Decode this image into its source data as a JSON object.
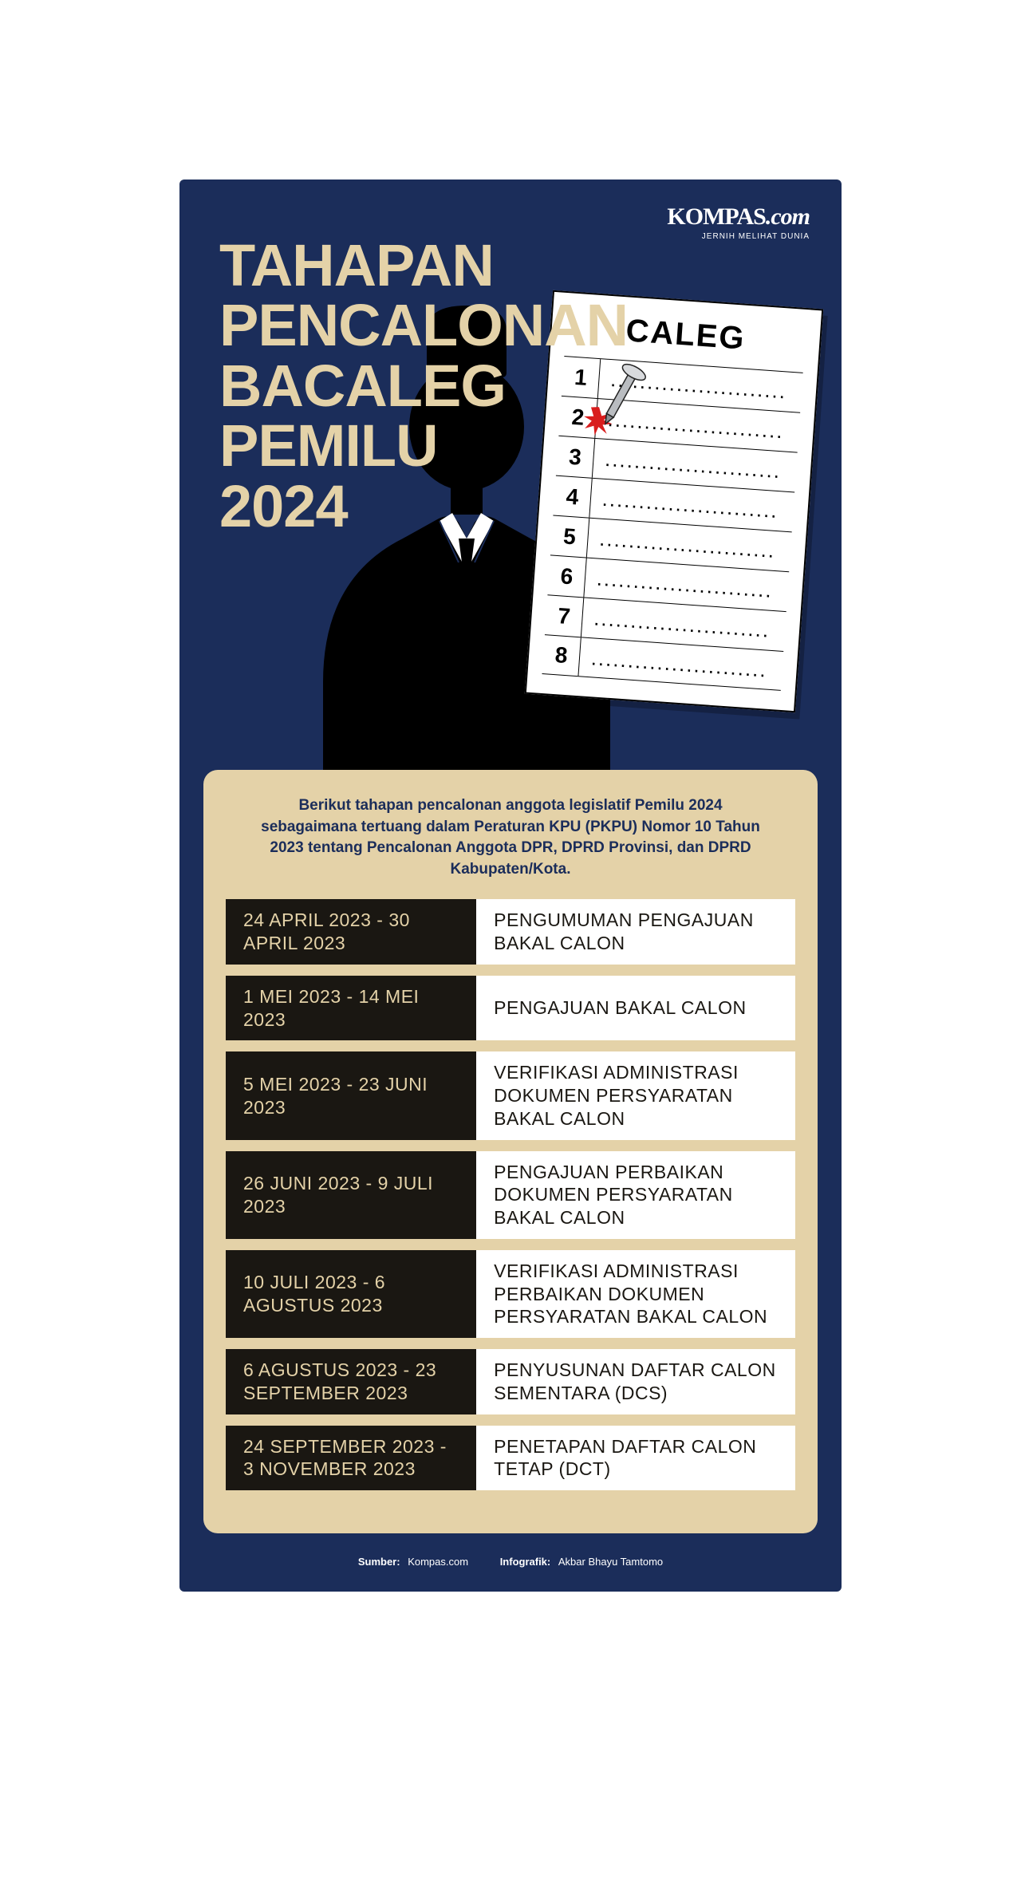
{
  "colors": {
    "poster_bg": "#1b2d5a",
    "accent_cream": "#e4d2a8",
    "row_dark": "#1a1712",
    "white": "#ffffff"
  },
  "logo": {
    "main_a": "KOMPAS",
    "main_b": ".com",
    "tagline": "JERNIH MELIHAT DUNIA"
  },
  "title": {
    "l1": "TAHAPAN",
    "l2": "PENCALONAN",
    "l3": "BACALEG",
    "l4": "PEMILU",
    "l5": "2024"
  },
  "ballot": {
    "header": "CALEG",
    "rows": [
      "1",
      "2",
      "3",
      "4",
      "5",
      "6",
      "7",
      "8"
    ],
    "dots": "........................",
    "nailed_index": 1
  },
  "intro": "Berikut tahapan pencalonan anggota legislatif Pemilu 2024 sebagaimana tertuang dalam Peraturan KPU (PKPU) Nomor 10 Tahun 2023 tentang Pencalonan Anggota DPR, DPRD Provinsi, dan DPRD Kabupaten/Kota.",
  "stages": [
    {
      "date": "24 APRIL 2023 - 30 APRIL 2023",
      "desc": "PENGUMUMAN PENGAJUAN BAKAL CALON"
    },
    {
      "date": "1 MEI 2023 - 14 MEI 2023",
      "desc": "PENGAJUAN BAKAL CALON"
    },
    {
      "date": "5 MEI 2023 - 23 JUNI 2023",
      "desc": "VERIFIKASI ADMINISTRASI DOKUMEN PERSYARATAN BAKAL CALON"
    },
    {
      "date": "26 JUNI 2023 - 9 JULI 2023",
      "desc": "PENGAJUAN PERBAIKAN DOKUMEN PERSYARATAN BAKAL CALON"
    },
    {
      "date": "10 JULI 2023 - 6 AGUSTUS 2023",
      "desc": "VERIFIKASI ADMINISTRASI PERBAIKAN DOKUMEN PERSYARATAN BAKAL CALON"
    },
    {
      "date": "6 AGUSTUS 2023 - 23 SEPTEMBER 2023",
      "desc": "PENYUSUNAN DAFTAR CALON SEMENTARA (DCS)"
    },
    {
      "date": "24 SEPTEMBER 2023 - 3 NOVEMBER 2023",
      "desc": "PENETAPAN DAFTAR CALON TETAP (DCT)"
    }
  ],
  "footer": {
    "source_label": "Sumber:",
    "source_value": "Kompas.com",
    "credit_label": "Infografik:",
    "credit_value": "Akbar Bhayu Tamtomo"
  }
}
